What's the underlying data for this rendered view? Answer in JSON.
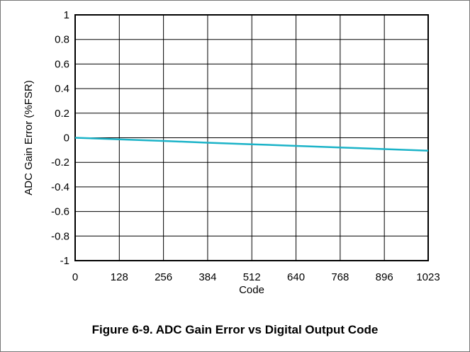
{
  "caption": "Figure 6-9. ADC Gain Error vs Digital Output Code",
  "chart_data": {
    "type": "line",
    "title": "",
    "xlabel": "Code",
    "ylabel": "ADC Gain Error (%FSR)",
    "xlim": [
      0,
      1023
    ],
    "ylim": [
      -1,
      1
    ],
    "x_ticks": [
      0,
      128,
      256,
      384,
      512,
      640,
      768,
      896,
      1023
    ],
    "x_tick_labels": [
      "0",
      "128",
      "256",
      "384",
      "512",
      "640",
      "768",
      "896",
      "1023"
    ],
    "y_ticks": [
      1,
      0.8,
      0.6,
      0.4,
      0.2,
      0,
      -0.2,
      -0.4,
      -0.6,
      -0.8,
      -1
    ],
    "y_tick_labels": [
      "1",
      "0.8",
      "0.6",
      "0.4",
      "0.2",
      "0",
      "-0.2",
      "-0.4",
      "-0.6",
      "-0.8",
      "-1"
    ],
    "grid": true,
    "line_color": "#1BB3C8",
    "series": [
      {
        "x": [
          0,
          128,
          256,
          384,
          512,
          640,
          768,
          896,
          1023
        ],
        "y": [
          0,
          -0.013,
          -0.026,
          -0.04,
          -0.053,
          -0.066,
          -0.079,
          -0.092,
          -0.105
        ]
      }
    ]
  }
}
